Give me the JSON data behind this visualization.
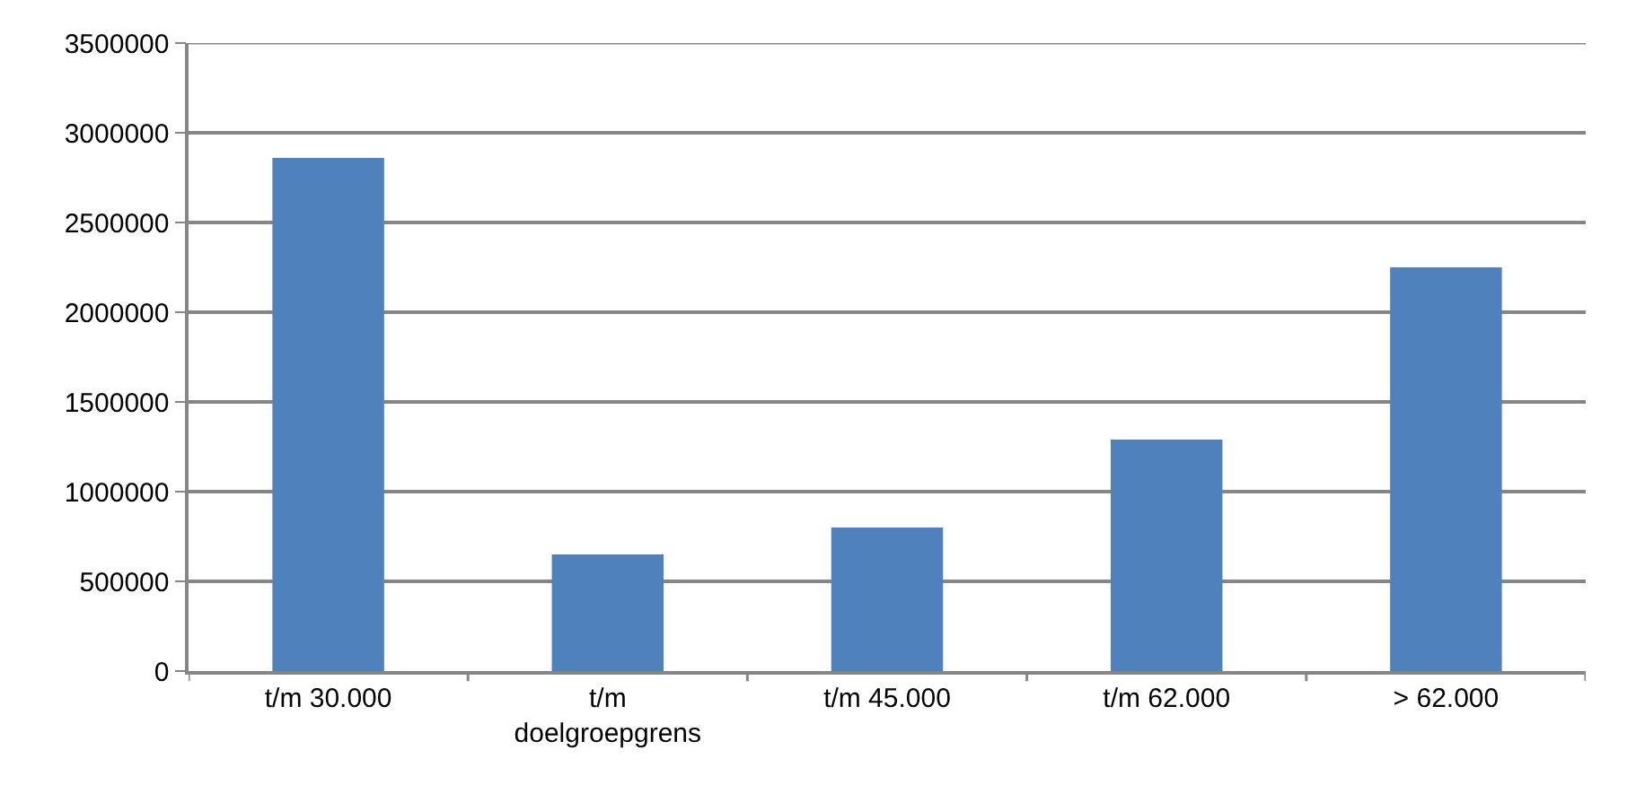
{
  "chart_data": {
    "type": "bar",
    "categories": [
      "t/m 30.000",
      "t/m doelgroepgrens",
      "t/m 45.000",
      "t/m 62.000",
      "> 62.000"
    ],
    "values": [
      2860000,
      650000,
      800000,
      1290000,
      2250000
    ],
    "color": "#4f81bd",
    "ylim": [
      0,
      3500000
    ],
    "yticks": [
      0,
      500000,
      1000000,
      1500000,
      2000000,
      2500000,
      3000000,
      3500000
    ],
    "grid": "y"
  }
}
